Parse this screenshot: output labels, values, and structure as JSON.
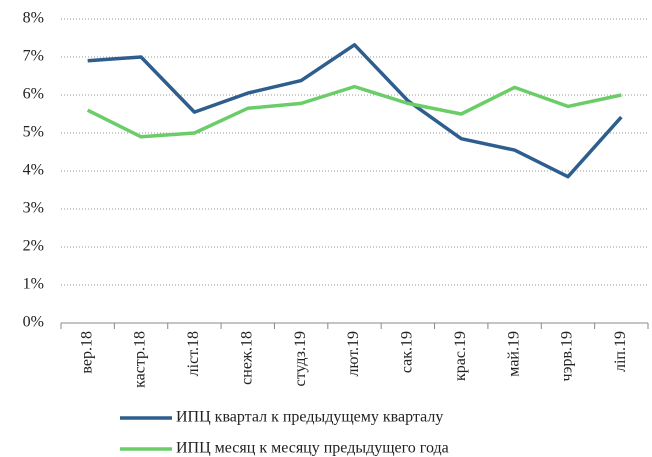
{
  "chart_data": {
    "type": "line",
    "categories": [
      "вер.18",
      "кастр.18",
      "ліст.18",
      "снеж.18",
      "студз.19",
      "лют.19",
      "сак.19",
      "крас.19",
      "май.19",
      "чэрв.19",
      "ліп.19"
    ],
    "series": [
      {
        "name": "ИПЦ квартал к предыдущему кварталу",
        "color": "#2e5e8e",
        "values": [
          6.9,
          7.0,
          5.55,
          6.05,
          6.38,
          7.32,
          5.85,
          4.85,
          4.55,
          3.85,
          5.42
        ]
      },
      {
        "name": "ИПЦ месяц к месяцу предыдущего года",
        "color": "#6acd68",
        "values": [
          5.6,
          4.9,
          5.0,
          5.65,
          5.78,
          6.22,
          5.78,
          5.5,
          6.2,
          5.7,
          6.0
        ]
      }
    ],
    "ylim": [
      0,
      8
    ],
    "yticks": [
      {
        "value": 0,
        "label": "0%"
      },
      {
        "value": 1,
        "label": "1%"
      },
      {
        "value": 2,
        "label": "2%"
      },
      {
        "value": 3,
        "label": "3%"
      },
      {
        "value": 4,
        "label": "4%"
      },
      {
        "value": 5,
        "label": "5%"
      },
      {
        "value": 6,
        "label": "6%"
      },
      {
        "value": 7,
        "label": "7%"
      },
      {
        "value": 8,
        "label": "8%"
      }
    ],
    "grid": true,
    "legend": "bottom"
  }
}
